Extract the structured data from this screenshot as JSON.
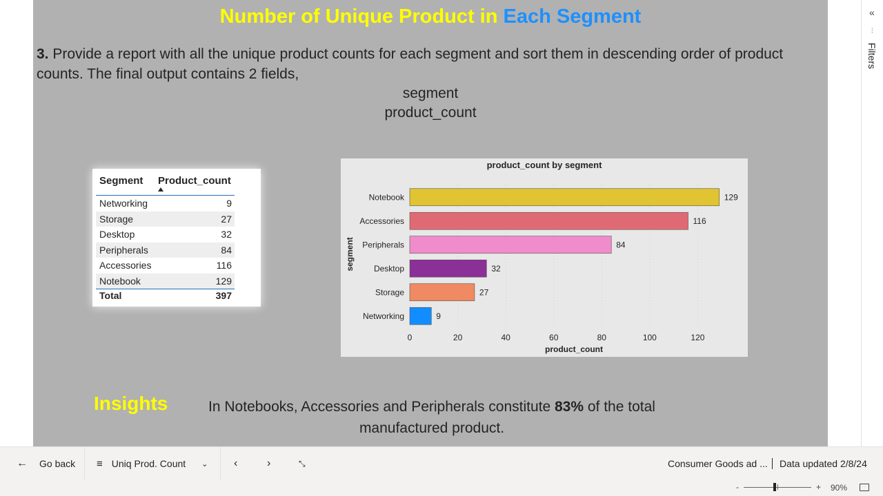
{
  "report": {
    "title_part1": "Number of Unique Product in ",
    "title_part2": "Each Segment",
    "question_num": "3.",
    "question_text": " Provide a report with all the unique product counts for each segment and sort them in descending order of product counts. The final output contains 2 fields,",
    "field1": "segment",
    "field2": "product_count",
    "insights_heading": "Insights",
    "insight_text_pre": "In Notebooks, Accessories and Peripherals constitute ",
    "insight_highlight": "83%",
    "insight_text_post": " of the total manufactured product."
  },
  "table": {
    "col1": "Segment",
    "col2": "Product_count",
    "rows": [
      {
        "segment": "Networking",
        "count": "9"
      },
      {
        "segment": "Storage",
        "count": "27"
      },
      {
        "segment": "Desktop",
        "count": "32"
      },
      {
        "segment": "Peripherals",
        "count": "84"
      },
      {
        "segment": "Accessories",
        "count": "116"
      },
      {
        "segment": "Notebook",
        "count": "129"
      }
    ],
    "total_label": "Total",
    "total_value": "397"
  },
  "chart_data": {
    "type": "bar",
    "orientation": "horizontal",
    "title": "product_count by segment",
    "xlabel": "product_count",
    "ylabel": "segment",
    "categories": [
      "Notebook",
      "Accessories",
      "Peripherals",
      "Desktop",
      "Storage",
      "Networking"
    ],
    "values": [
      129,
      116,
      84,
      32,
      27,
      9
    ],
    "colors": [
      "#e0c431",
      "#e06a73",
      "#f08ccc",
      "#8b3096",
      "#ef8a62",
      "#118dff"
    ],
    "xlim": [
      0,
      140
    ],
    "xticks": [
      0,
      20,
      40,
      60,
      80,
      100,
      120
    ],
    "grid": true
  },
  "filters": {
    "label": "Filters"
  },
  "bottom": {
    "back": "Go back",
    "page_name": "Uniq Prod. Count",
    "report_name": "Consumer Goods ad ...",
    "data_updated": "Data updated 2/8/24",
    "zoom": "90%",
    "zoom_minus": "-",
    "zoom_plus": "+"
  }
}
